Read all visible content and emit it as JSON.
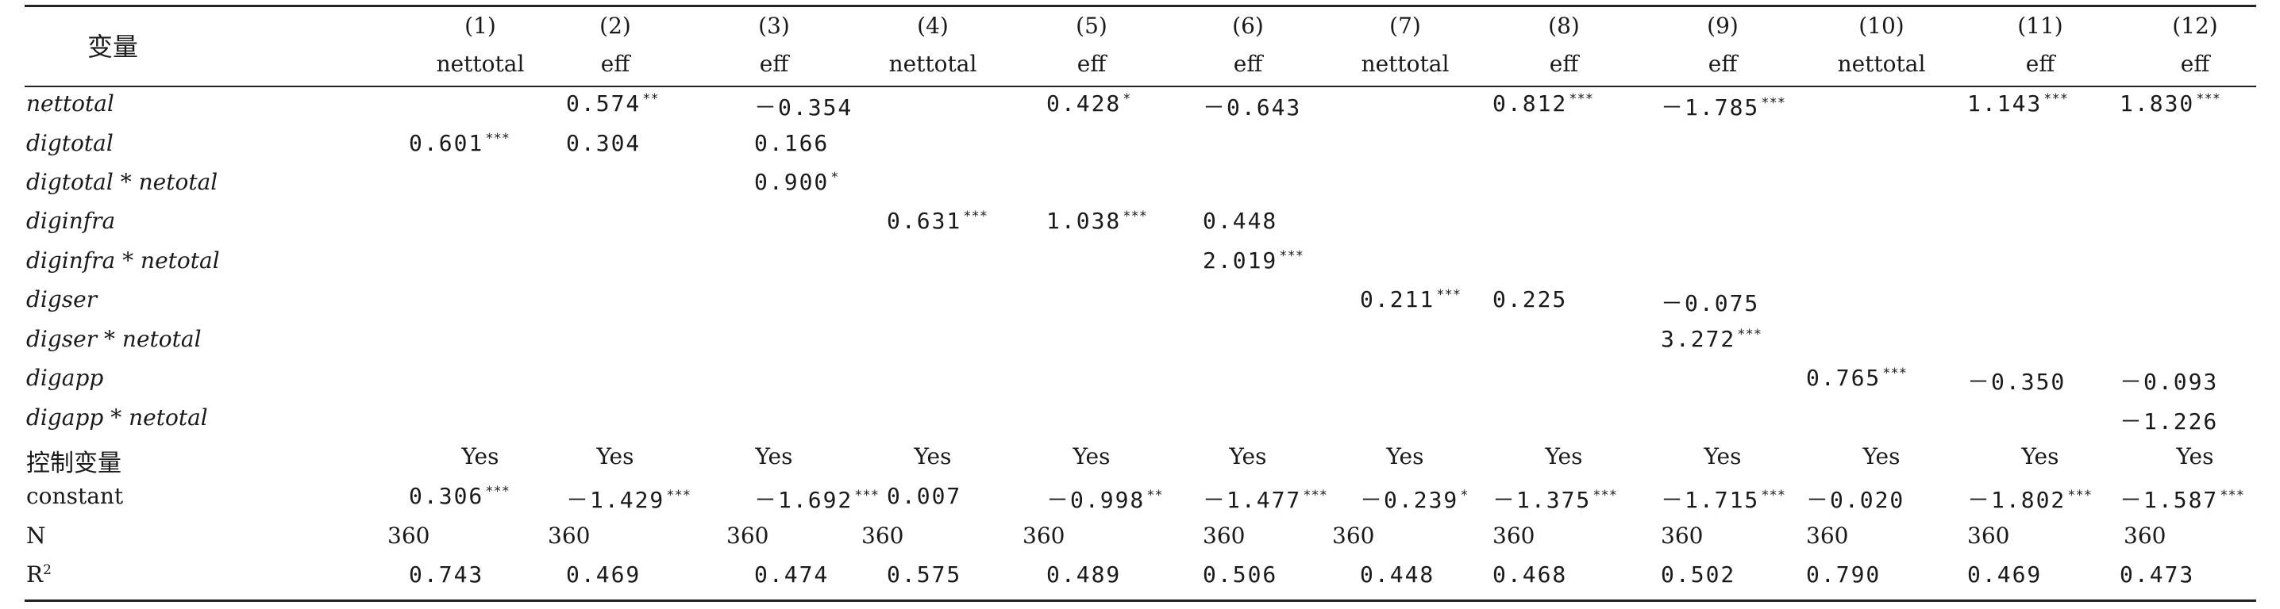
{
  "header": {
    "variable_label": "变量",
    "column_numbers": [
      "(1)",
      "(2)",
      "(3)",
      "(4)",
      "(5)",
      "(6)",
      "(7)",
      "(8)",
      "(9)",
      "(10)",
      "(11)",
      "(12)"
    ],
    "dependent_vars": [
      "nettotal",
      "eff",
      "eff",
      "nettotal",
      "eff",
      "eff",
      "nettotal",
      "eff",
      "eff",
      "nettotal",
      "eff",
      "eff"
    ]
  },
  "rows": [
    {
      "label": "nettotal",
      "italic": true,
      "cells": {
        "2": [
          "0.574",
          "**"
        ],
        "3": [
          "－0.354",
          ""
        ],
        "5": [
          "0.428",
          "*"
        ],
        "6": [
          "－0.643",
          ""
        ],
        "8": [
          "0.812",
          "***"
        ],
        "9": [
          "－1.785",
          "***"
        ],
        "11": [
          "1.143",
          "***"
        ],
        "12": [
          "1.830",
          "***"
        ]
      }
    },
    {
      "label": "digtotal",
      "italic": true,
      "cells": {
        "1": [
          "0.601",
          "***"
        ],
        "2": [
          "0.304",
          ""
        ],
        "3": [
          "0.166",
          ""
        ]
      }
    },
    {
      "label": "digtotal * netotal",
      "italic": true,
      "cells": {
        "3": [
          "0.900",
          "*"
        ]
      }
    },
    {
      "label": "diginfra",
      "italic": true,
      "cells": {
        "4": [
          "0.631",
          "***"
        ],
        "5": [
          "1.038",
          "***"
        ],
        "6": [
          "0.448",
          ""
        ]
      }
    },
    {
      "label": "diginfra * netotal",
      "italic": true,
      "cells": {
        "6": [
          "2.019",
          "***"
        ]
      }
    },
    {
      "label": "digser",
      "italic": true,
      "cells": {
        "7": [
          "0.211",
          "***"
        ],
        "8": [
          "0.225",
          ""
        ],
        "9": [
          "－0.075",
          ""
        ]
      }
    },
    {
      "label": "digser * netotal",
      "italic": true,
      "cells": {
        "9": [
          "3.272",
          "***"
        ]
      }
    },
    {
      "label": "digapp",
      "italic": true,
      "cells": {
        "10": [
          "0.765",
          "***"
        ],
        "11": [
          "－0.350",
          ""
        ],
        "12": [
          "－0.093",
          ""
        ]
      }
    },
    {
      "label": "digapp * netotal",
      "italic": true,
      "cells": {
        "12": [
          "－1.226",
          ""
        ]
      }
    },
    {
      "label": "控制变量",
      "italic": false,
      "cn": true,
      "yes": true,
      "cells": {
        "1": [
          "Yes",
          ""
        ],
        "2": [
          "Yes",
          ""
        ],
        "3": [
          "Yes",
          ""
        ],
        "4": [
          "Yes",
          ""
        ],
        "5": [
          "Yes",
          ""
        ],
        "6": [
          "Yes",
          ""
        ],
        "7": [
          "Yes",
          ""
        ],
        "8": [
          "Yes",
          ""
        ],
        "9": [
          "Yes",
          ""
        ],
        "10": [
          "Yes",
          ""
        ],
        "11": [
          "Yes",
          ""
        ],
        "12": [
          "Yes",
          ""
        ]
      }
    },
    {
      "label": "constant",
      "italic": false,
      "cells": {
        "1": [
          "0.306",
          "***"
        ],
        "2": [
          "－1.429",
          "***"
        ],
        "3": [
          "－1.692",
          "***"
        ],
        "4": [
          "0.007",
          ""
        ],
        "5": [
          "－0.998",
          "**"
        ],
        "6": [
          "－1.477",
          "***"
        ],
        "7": [
          "－0.239",
          "*"
        ],
        "8": [
          "－1.375",
          "***"
        ],
        "9": [
          "－1.715",
          "***"
        ],
        "10": [
          "－0.020",
          ""
        ],
        "11": [
          "－1.802",
          "***"
        ],
        "12": [
          "－1.587",
          "***"
        ]
      }
    },
    {
      "label": "N",
      "italic": false,
      "nrow": true,
      "cells": {
        "1": [
          "360",
          ""
        ],
        "2": [
          "360",
          ""
        ],
        "3": [
          "360",
          ""
        ],
        "4": [
          "360",
          ""
        ],
        "5": [
          "360",
          ""
        ],
        "6": [
          "360",
          ""
        ],
        "7": [
          "360",
          ""
        ],
        "8": [
          "360",
          ""
        ],
        "9": [
          "360",
          ""
        ],
        "10": [
          "360",
          ""
        ],
        "11": [
          "360",
          ""
        ],
        "12": [
          "360",
          ""
        ]
      }
    },
    {
      "label": "R",
      "label_sup": "2",
      "italic": false,
      "cells": {
        "1": [
          "0.743",
          ""
        ],
        "2": [
          "0.469",
          ""
        ],
        "3": [
          "0.474",
          ""
        ],
        "4": [
          "0.575",
          ""
        ],
        "5": [
          "0.489",
          ""
        ],
        "6": [
          "0.506",
          ""
        ],
        "7": [
          "0.448",
          ""
        ],
        "8": [
          "0.468",
          ""
        ],
        "9": [
          "0.502",
          ""
        ],
        "10": [
          "0.790",
          ""
        ],
        "11": [
          "0.469",
          ""
        ],
        "12": [
          "0.473",
          ""
        ]
      }
    }
  ]
}
